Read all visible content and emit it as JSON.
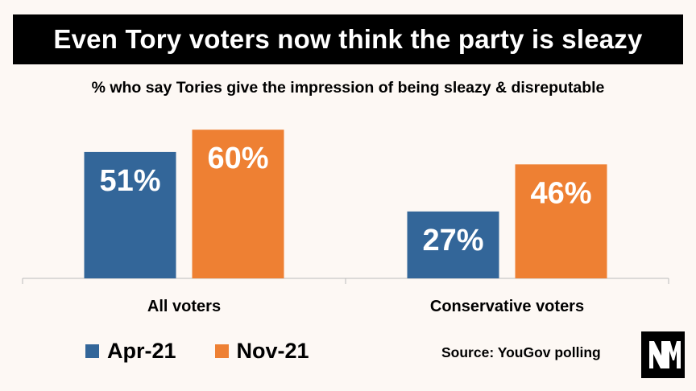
{
  "title": "Even Tory voters now think the party is sleazy",
  "subtitle": "% who say Tories give the impression of being sleazy & disreputable",
  "source": "Source: YouGov polling",
  "logo_text": "NM",
  "colors": {
    "apr": "#336699",
    "nov": "#ee8033",
    "title_bg": "#000000",
    "background": "#fdf8f4"
  },
  "chart_data": {
    "type": "bar",
    "categories": [
      "All voters",
      "Conservative voters"
    ],
    "series": [
      {
        "name": "Apr-21",
        "values": [
          51,
          27
        ],
        "labels": [
          "51%",
          "27%"
        ],
        "color": "#336699"
      },
      {
        "name": "Nov-21",
        "values": [
          60,
          46
        ],
        "labels": [
          "60%",
          "46%"
        ],
        "color": "#ee8033"
      }
    ],
    "title": "Even Tory voters now think the party is sleazy",
    "ylim": [
      0,
      80
    ],
    "grid": false,
    "legend": "bottom-left"
  }
}
